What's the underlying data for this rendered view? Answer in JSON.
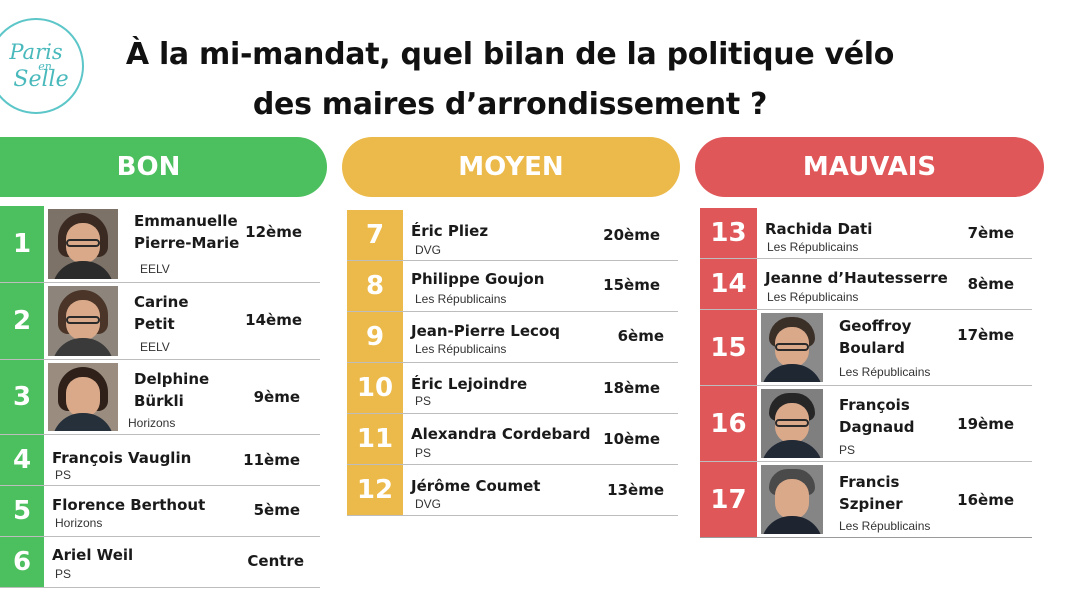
{
  "logo": {
    "line1": "Paris",
    "line2": "en",
    "line3": "Selle"
  },
  "title": {
    "line1": "À la mi-mandat, quel bilan de la politique vélo",
    "line2": "des maires d’arrondissement ?"
  },
  "columns": {
    "bon": {
      "label": "BON",
      "rows": [
        {
          "num": "1",
          "name1": "Emmanuelle",
          "name2": "Pierre-Marie",
          "party": "EELV",
          "arr": "12ème"
        },
        {
          "num": "2",
          "name1": "Carine",
          "name2": "Petit",
          "party": "EELV",
          "arr": "14ème"
        },
        {
          "num": "3",
          "name1": "Delphine",
          "name2": "Bürkli",
          "party": "Horizons",
          "arr": "9ème"
        },
        {
          "num": "4",
          "name": "François Vauglin",
          "party": "PS",
          "arr": "11ème"
        },
        {
          "num": "5",
          "name": "Florence Berthout",
          "party": "Horizons",
          "arr": "5ème"
        },
        {
          "num": "6",
          "name": "Ariel Weil",
          "party": "PS",
          "arr": "Centre"
        }
      ]
    },
    "moyen": {
      "label": "MOYEN",
      "rows": [
        {
          "num": "7",
          "name": "Éric Pliez",
          "party": "DVG",
          "arr": "20ème"
        },
        {
          "num": "8",
          "name": "Philippe Goujon",
          "party": "Les Républicains",
          "arr": "15ème"
        },
        {
          "num": "9",
          "name": "Jean-Pierre Lecoq",
          "party": "Les Républicains",
          "arr": "6ème"
        },
        {
          "num": "10",
          "name": "Éric Lejoindre",
          "party": "PS",
          "arr": "18ème"
        },
        {
          "num": "11",
          "name": "Alexandra Cordebard",
          "party": "PS",
          "arr": "10ème"
        },
        {
          "num": "12",
          "name": "Jérôme Coumet",
          "party": "DVG",
          "arr": "13ème"
        }
      ]
    },
    "mauvais": {
      "label": "MAUVAIS",
      "rows": [
        {
          "num": "13",
          "name": "Rachida Dati",
          "party": "Les Républicains",
          "arr": "7ème"
        },
        {
          "num": "14",
          "name": "Jeanne d’Hautesserre",
          "party": "Les Républicains",
          "arr": "8ème"
        },
        {
          "num": "15",
          "name1": "Geoffroy",
          "name2": "Boulard",
          "party": "Les Républicains",
          "arr": "17ème"
        },
        {
          "num": "16",
          "name1": "François",
          "name2": "Dagnaud",
          "party": "PS",
          "arr": "19ème"
        },
        {
          "num": "17",
          "name1": "Francis",
          "name2": "Szpiner",
          "party": "Les Républicains",
          "arr": "16ème"
        }
      ]
    }
  },
  "colors": {
    "bon": "#4cbf5e",
    "moyen": "#ecba4a",
    "mauvais": "#e0575a",
    "logo": "#49b9bc"
  }
}
